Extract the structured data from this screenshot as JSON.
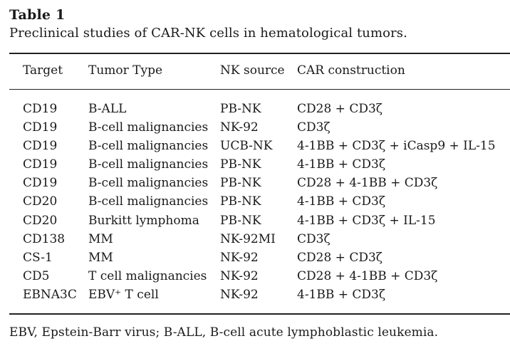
{
  "table": {
    "label": "Table 1",
    "caption": "Preclinical studies of CAR-NK cells in hematological tumors.",
    "headers": [
      "Target",
      "Tumor Type",
      "NK source",
      "CAR construction"
    ],
    "rows": [
      [
        "CD19",
        "B-ALL",
        "PB-NK",
        "CD28 + CD3ζ"
      ],
      [
        "CD19",
        "B-cell malignancies",
        "NK-92",
        "CD3ζ"
      ],
      [
        "CD19",
        "B-cell malignancies",
        "UCB-NK",
        "4-1BB + CD3ζ + iCasp9 + IL-15"
      ],
      [
        "CD19",
        "B-cell malignancies",
        "PB-NK",
        "4-1BB + CD3ζ"
      ],
      [
        "CD19",
        "B-cell malignancies",
        "PB-NK",
        "CD28 + 4-1BB + CD3ζ"
      ],
      [
        "CD20",
        "B-cell malignancies",
        "PB-NK",
        "4-1BB + CD3ζ"
      ],
      [
        "CD20",
        "Burkitt lymphoma",
        "PB-NK",
        "4-1BB + CD3ζ + IL-15"
      ],
      [
        "CD138",
        "MM",
        "NK-92MI",
        "CD3ζ"
      ],
      [
        "CS-1",
        "MM",
        "NK-92",
        "CD28 + CD3ζ"
      ],
      [
        "CD5",
        "T cell malignancies",
        "NK-92",
        "CD28 + 4-1BB + CD3ζ"
      ],
      [
        "EBNA3C",
        "EBV⁺ T cell",
        "NK-92",
        "4-1BB + CD3ζ"
      ]
    ],
    "footnote": "EBV, Epstein-Barr virus; B-ALL, B-cell acute lymphoblastic leukemia."
  }
}
